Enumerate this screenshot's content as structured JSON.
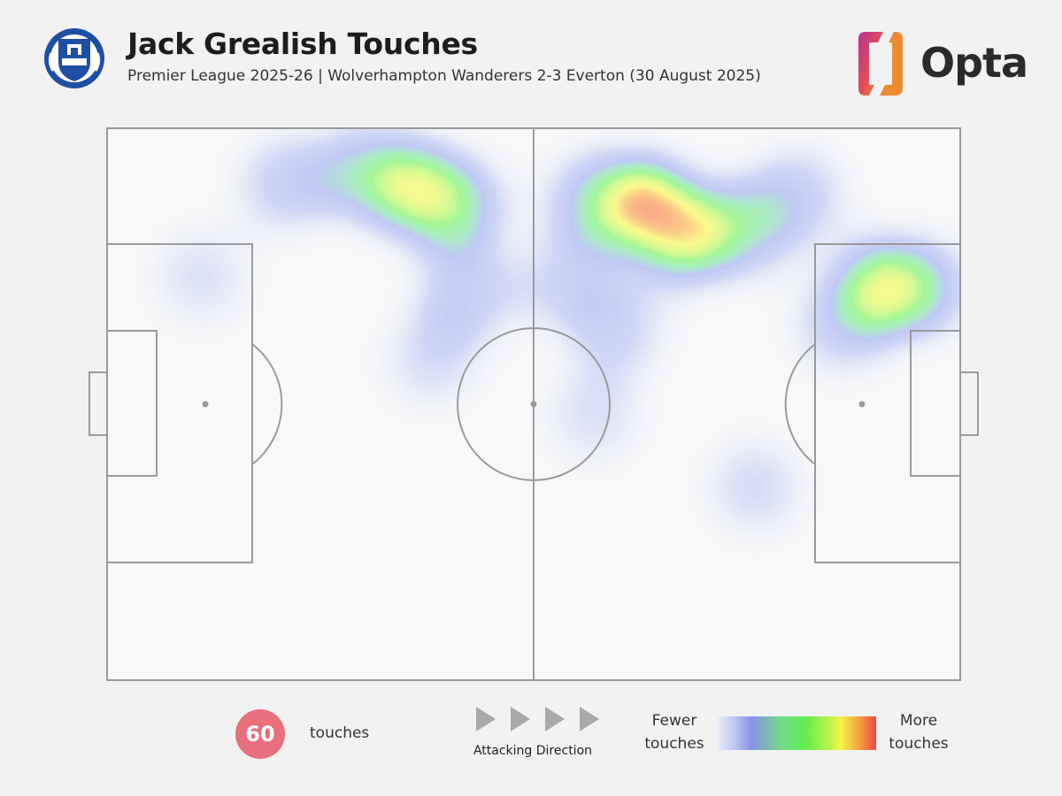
{
  "header": {
    "title": "Jack Grealish Touches",
    "subtitle": "Premier League 2025-26 | Wolverhampton Wanderers 2-3 Everton (30 August 2025)",
    "crest_icon": "everton-crest-icon",
    "brand": "Opta",
    "brand_icon": "opta-logo-icon"
  },
  "colors": {
    "background": "#f2f2f3",
    "pitch_lines": "#9a9a9a",
    "badge": "#e8707c",
    "everton_blue": "#1f4fa3"
  },
  "chart_data": {
    "type": "heatmap",
    "title": "Jack Grealish Touches",
    "subtitle": "Premier League 2025-26 | Wolverhampton Wanderers 2-3 Everton (30 August 2025)",
    "pitch": {
      "length": 100,
      "width": 100,
      "orientation": "horizontal",
      "attacking_direction": "right"
    },
    "total_touches": 60,
    "hotspots": [
      {
        "x": 36,
        "y": 89,
        "intensity": 0.75
      },
      {
        "x": 41,
        "y": 86,
        "intensity": 0.55
      },
      {
        "x": 30,
        "y": 92,
        "intensity": 0.45
      },
      {
        "x": 21,
        "y": 90,
        "intensity": 0.35
      },
      {
        "x": 42,
        "y": 70,
        "intensity": 0.35
      },
      {
        "x": 38,
        "y": 58,
        "intensity": 0.22
      },
      {
        "x": 63,
        "y": 86,
        "intensity": 1.0
      },
      {
        "x": 68,
        "y": 81,
        "intensity": 0.85
      },
      {
        "x": 57,
        "y": 87,
        "intensity": 0.45
      },
      {
        "x": 75,
        "y": 82,
        "intensity": 0.45
      },
      {
        "x": 54,
        "y": 72,
        "intensity": 0.28
      },
      {
        "x": 60,
        "y": 64,
        "intensity": 0.28
      },
      {
        "x": 57,
        "y": 48,
        "intensity": 0.2
      },
      {
        "x": 81,
        "y": 88,
        "intensity": 0.32
      },
      {
        "x": 91,
        "y": 71,
        "intensity": 0.8
      },
      {
        "x": 96,
        "y": 71,
        "intensity": 0.4
      },
      {
        "x": 86,
        "y": 64,
        "intensity": 0.3
      },
      {
        "x": 11,
        "y": 73,
        "intensity": 0.2
      },
      {
        "x": 76,
        "y": 35,
        "intensity": 0.25
      }
    ],
    "legend": {
      "low_label": "Fewer touches",
      "high_label": "More touches"
    }
  },
  "footer": {
    "touches_count": "60",
    "touches_label": "touches",
    "direction_label": "Attacking Direction",
    "legend_low_line1": "Fewer",
    "legend_low_line2": "touches",
    "legend_high_line1": "More",
    "legend_high_line2": "touches"
  }
}
